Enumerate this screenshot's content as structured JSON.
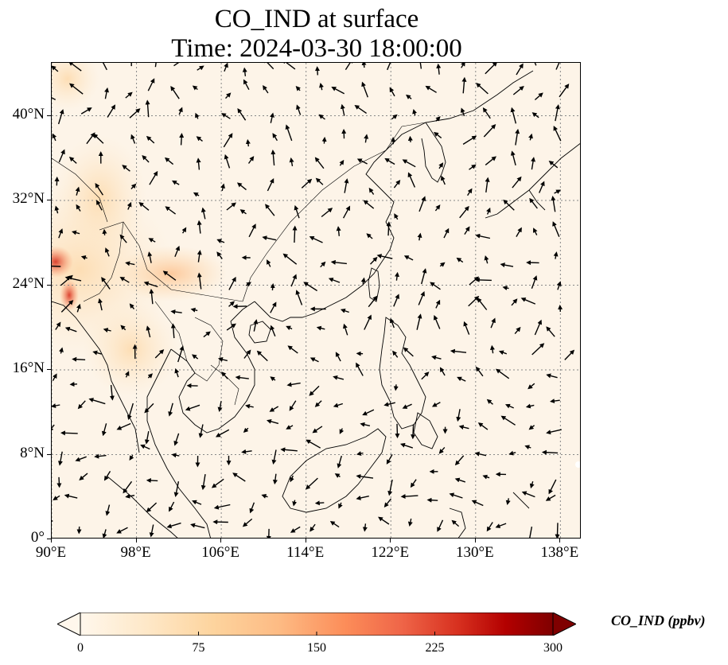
{
  "title": {
    "line1": "CO_IND at surface",
    "line2": "Time: 2024-03-30 18:00:00"
  },
  "map": {
    "extent": {
      "lon_min": 90,
      "lon_max": 140,
      "lat_min": 0,
      "lat_max": 45
    },
    "x_ticks": [
      "90°E",
      "98°E",
      "106°E",
      "114°E",
      "122°E",
      "130°E",
      "138°E"
    ],
    "x_tick_values": [
      90,
      98,
      106,
      114,
      122,
      130,
      138
    ],
    "y_ticks": [
      "0°",
      "8°N",
      "16°N",
      "24°N",
      "32°N",
      "40°N"
    ],
    "y_tick_values": [
      0,
      8,
      16,
      24,
      32,
      40
    ],
    "gridlines": true,
    "background_color": "#fdf4e8",
    "coastline_color": "#000000",
    "vector_color": "#000000",
    "features": [
      "coastlines",
      "country borders",
      "wind vectors"
    ]
  },
  "colorbar": {
    "label": "CO_IND (ppbv)",
    "ticks": [
      "0",
      "75",
      "150",
      "225",
      "300"
    ],
    "tick_values": [
      0,
      75,
      150,
      225,
      300
    ],
    "min": 0,
    "max": 300,
    "extend": "both",
    "colormap": "OrRd",
    "colors": [
      "#fff7ec",
      "#fee8c8",
      "#fdd49e",
      "#fdbb84",
      "#fc8d59",
      "#ef6548",
      "#d7301f",
      "#b30000",
      "#7f0000"
    ]
  }
}
